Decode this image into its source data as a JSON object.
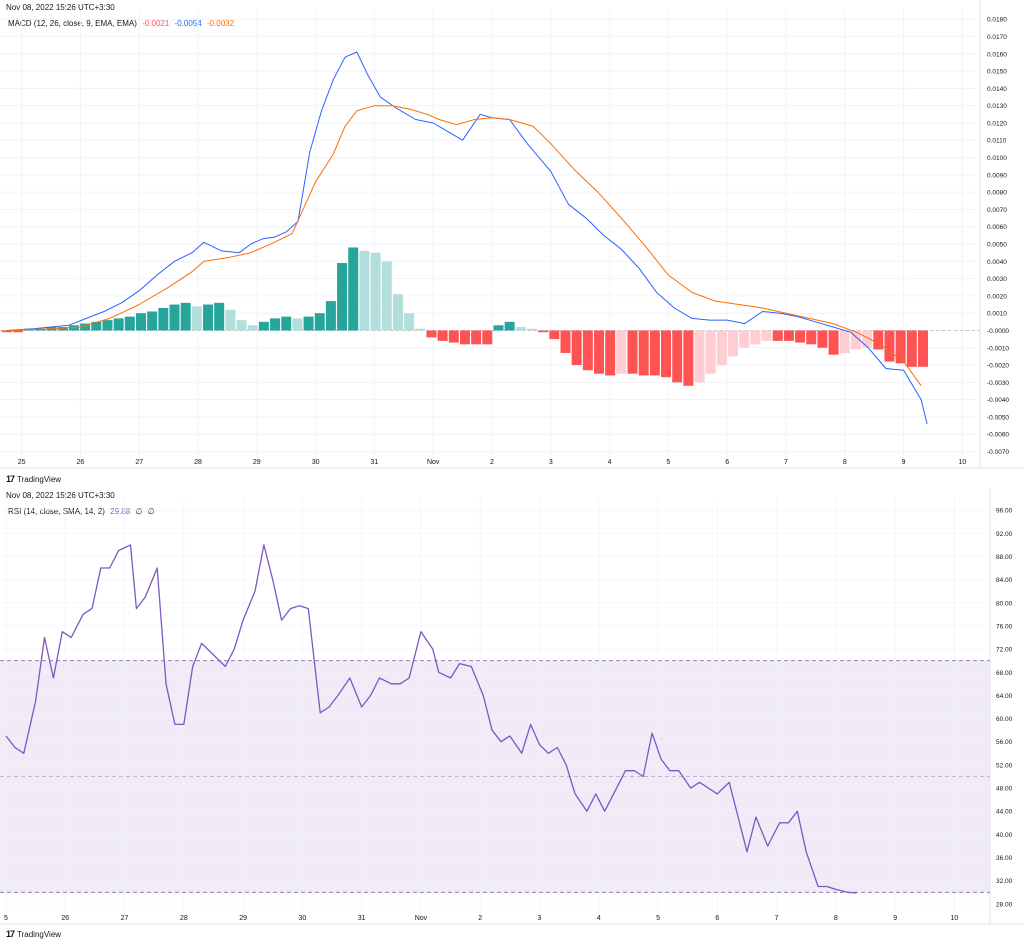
{
  "macd_panel": {
    "timestamp": "Nov 08, 2022 15:26 UTC+3:30",
    "legend": {
      "label": "MACD (12, 26, close, 9, EMA, EMA)",
      "value_histogram": "-0.0021",
      "value_macd": "-0.0054",
      "value_signal": "-0.0032"
    },
    "brand": "TradingView"
  },
  "rsi_panel": {
    "timestamp": "Nov 08, 2022 15:26 UTC+3:30",
    "legend": {
      "label": "RSI (14, close, SMA, 14, 2)",
      "value": "29.88",
      "extra1": "∅",
      "extra2": "∅"
    },
    "brand": "TradingView"
  },
  "colors": {
    "macd_line": "#2962ff",
    "signal_line": "#ff6d00",
    "hist_pos_strong": "#26a69a",
    "hist_pos_weak": "#b2dfdb",
    "hist_neg_strong": "#ff5252",
    "hist_neg_weak": "#ffcdd2",
    "rsi_line": "#7e57c2",
    "rsi_band": "#ede7f6",
    "value_red": "#ff5252",
    "value_blue": "#2962ff",
    "value_orange": "#ff6d00",
    "value_purple": "#7e57c2"
  },
  "chart_data": [
    {
      "type": "line",
      "x_ticks": [
        "25",
        "26",
        "27",
        "28",
        "29",
        "30",
        "31",
        "Nov",
        "2",
        "3",
        "4",
        "5",
        "6",
        "7",
        "8",
        "9",
        "10"
      ],
      "y_ticks": [
        "0.0180",
        "0.0170",
        "0.0160",
        "0.0150",
        "0.0140",
        "0.0130",
        "0.0120",
        "0.0110",
        "0.0100",
        "0.0090",
        "0.0080",
        "0.0070",
        "0.0060",
        "0.0050",
        "0.0040",
        "0.0030",
        "0.0020",
        "0.0010",
        "-0.0000",
        "-0.0010",
        "-0.0020",
        "-0.0030",
        "-0.0040",
        "-0.0050",
        "-0.0060",
        "-0.0070"
      ],
      "ylim": [
        -0.0072,
        0.0183
      ],
      "xlim": [
        24.7,
        41.3
      ],
      "zero_line": 0,
      "bar_width": 0.17,
      "histogram": {
        "x": [
          24.75,
          24.94,
          25.13,
          25.32,
          25.51,
          25.7,
          25.89,
          26.08,
          26.27,
          26.46,
          26.65,
          26.84,
          27.03,
          27.22,
          27.41,
          27.6,
          27.79,
          27.98,
          28.17,
          28.36,
          28.55,
          28.74,
          28.93,
          29.12,
          29.31,
          29.5,
          29.69,
          29.88,
          30.07,
          30.26,
          30.45,
          30.64,
          30.83,
          31.02,
          31.21,
          31.4,
          31.59,
          31.78,
          31.97,
          32.16,
          32.35,
          32.54,
          32.73,
          32.92,
          33.11,
          33.3,
          33.49,
          33.68,
          33.87,
          34.06,
          34.25,
          34.44,
          34.63,
          34.82,
          35.01,
          35.2,
          35.39,
          35.58,
          35.77,
          35.96,
          36.15,
          36.34,
          36.53,
          36.72,
          36.91,
          37.1,
          37.29,
          37.48,
          37.67,
          37.86,
          38.05,
          38.24,
          38.43,
          38.62,
          38.81,
          39.0,
          39.19,
          39.38,
          39.57,
          39.76,
          39.95,
          40.14,
          40.33
        ],
        "values": [
          -0.0001,
          -0.0001,
          0.0001,
          0.0001,
          0.0002,
          0.0002,
          0.0003,
          0.0004,
          0.0005,
          0.0006,
          0.0007,
          0.0008,
          0.001,
          0.0011,
          0.0013,
          0.0015,
          0.0016,
          0.0014,
          0.0015,
          0.0016,
          0.0012,
          0.0006,
          0.0003,
          0.0005,
          0.0007,
          0.0008,
          0.0007,
          0.0008,
          0.001,
          0.0017,
          0.0039,
          0.0048,
          0.0046,
          0.0045,
          0.004,
          0.0021,
          0.001,
          0.0001,
          -0.0004,
          -0.0006,
          -0.0007,
          -0.0008,
          -0.0008,
          -0.0008,
          0.0003,
          0.0005,
          0.0002,
          0.0001,
          -0.0001,
          -0.0005,
          -0.0013,
          -0.002,
          -0.0023,
          -0.0025,
          -0.0026,
          -0.0025,
          -0.0025,
          -0.0026,
          -0.0026,
          -0.0027,
          -0.003,
          -0.0032,
          -0.003,
          -0.0025,
          -0.002,
          -0.0015,
          -0.001,
          -0.0008,
          -0.0006,
          -0.0006,
          -0.0006,
          -0.0007,
          -0.0008,
          -0.001,
          -0.0014,
          -0.0013,
          -0.0011,
          -0.001,
          -0.0011,
          -0.0018,
          -0.0019,
          -0.0021,
          -0.0021
        ]
      },
      "series": [
        {
          "name": "MACD",
          "x": [
            24.75,
            25.2,
            25.5,
            25.8,
            26.1,
            26.4,
            26.7,
            27.0,
            27.3,
            27.6,
            27.9,
            28.1,
            28.4,
            28.7,
            28.9,
            29.1,
            29.3,
            29.5,
            29.7,
            29.9,
            30.1,
            30.3,
            30.5,
            30.7,
            30.9,
            31.1,
            31.4,
            31.7,
            32.0,
            32.2,
            32.5,
            32.8,
            33.0,
            33.3,
            33.6,
            34.0,
            34.3,
            34.6,
            34.9,
            35.2,
            35.5,
            35.8,
            36.1,
            36.4,
            36.7,
            37.0,
            37.3,
            37.6,
            37.9,
            38.2,
            38.5,
            38.8,
            39.1,
            39.4,
            39.7,
            40.0,
            40.3,
            40.4
          ],
          "values": [
            0.0,
            0.0001,
            0.0002,
            0.0003,
            0.0007,
            0.0011,
            0.0016,
            0.0023,
            0.0032,
            0.004,
            0.0045,
            0.0051,
            0.0046,
            0.0045,
            0.005,
            0.0053,
            0.0054,
            0.0057,
            0.0063,
            0.0103,
            0.0127,
            0.0145,
            0.0158,
            0.0161,
            0.0147,
            0.0135,
            0.0128,
            0.0122,
            0.012,
            0.0116,
            0.011,
            0.0125,
            0.0123,
            0.0122,
            0.0108,
            0.0092,
            0.0073,
            0.0065,
            0.0055,
            0.0047,
            0.0036,
            0.0022,
            0.0013,
            0.0007,
            0.0006,
            0.0006,
            0.0004,
            0.0011,
            0.001,
            0.0008,
            0.0005,
            0.0002,
            -0.0001,
            -0.001,
            -0.0022,
            -0.0023,
            -0.004,
            -0.0054
          ]
        },
        {
          "name": "Signal",
          "x": [
            24.75,
            25.5,
            26.0,
            26.5,
            27.0,
            27.5,
            27.9,
            28.1,
            28.5,
            28.9,
            29.3,
            29.6,
            29.8,
            30.0,
            30.3,
            30.5,
            30.7,
            31.0,
            31.3,
            31.6,
            31.9,
            32.1,
            32.4,
            32.7,
            33.0,
            33.3,
            33.7,
            34.0,
            34.4,
            34.8,
            35.2,
            35.6,
            36.0,
            36.4,
            36.8,
            37.2,
            37.6,
            38.0,
            38.4,
            38.8,
            39.2,
            39.6,
            40.0,
            40.3
          ],
          "values": [
            0.0,
            0.0001,
            0.0002,
            0.0007,
            0.0015,
            0.0025,
            0.0034,
            0.004,
            0.0042,
            0.0045,
            0.0051,
            0.0056,
            0.0071,
            0.0086,
            0.0102,
            0.0118,
            0.0127,
            0.013,
            0.013,
            0.0128,
            0.0125,
            0.0122,
            0.0119,
            0.0122,
            0.0123,
            0.0122,
            0.0118,
            0.0108,
            0.0093,
            0.008,
            0.0065,
            0.0049,
            0.0032,
            0.0022,
            0.0017,
            0.0015,
            0.0013,
            0.001,
            0.0007,
            0.0004,
            -0.0001,
            -0.0008,
            -0.0018,
            -0.0032
          ]
        }
      ]
    },
    {
      "type": "line",
      "x_ticks": [
        "5",
        "26",
        "27",
        "28",
        "29",
        "30",
        "31",
        "Nov",
        "2",
        "3",
        "4",
        "5",
        "6",
        "7",
        "8",
        "9",
        "10"
      ],
      "y_ticks": [
        "96.00",
        "92.00",
        "88.00",
        "84.00",
        "80.00",
        "76.00",
        "72.00",
        "68.00",
        "64.00",
        "60.00",
        "56.00",
        "52.00",
        "48.00",
        "44.00",
        "40.00",
        "36.00",
        "32.00",
        "28.00"
      ],
      "ylim": [
        26.6,
        97.4
      ],
      "xlim": [
        25.0,
        41.6
      ],
      "band": [
        30,
        70
      ],
      "midline": 50,
      "series": [
        {
          "name": "RSI",
          "x": [
            25.0,
            25.15,
            25.3,
            25.5,
            25.65,
            25.8,
            25.95,
            26.1,
            26.3,
            26.45,
            26.6,
            26.75,
            26.9,
            27.1,
            27.2,
            27.35,
            27.55,
            27.7,
            27.85,
            28.0,
            28.15,
            28.3,
            28.5,
            28.7,
            28.85,
            29.0,
            29.2,
            29.35,
            29.5,
            29.65,
            29.8,
            29.95,
            30.1,
            30.3,
            30.45,
            30.6,
            30.8,
            31.0,
            31.15,
            31.3,
            31.5,
            31.65,
            31.8,
            32.0,
            32.2,
            32.3,
            32.5,
            32.65,
            32.85,
            33.05,
            33.2,
            33.35,
            33.5,
            33.7,
            33.85,
            34.0,
            34.15,
            34.3,
            34.45,
            34.6,
            34.8,
            34.95,
            35.1,
            35.3,
            35.45,
            35.6,
            35.75,
            35.9,
            36.05,
            36.2,
            36.35,
            36.55,
            36.7,
            36.85,
            37.0,
            37.2,
            37.35,
            37.5,
            37.65,
            37.85,
            38.05,
            38.2,
            38.35,
            38.5,
            38.7,
            38.85,
            39.0,
            39.2,
            39.35
          ],
          "values": [
            57.0,
            55.0,
            54.0,
            63.0,
            74.0,
            67.0,
            75.0,
            74.0,
            78.0,
            79.0,
            86.0,
            86.0,
            89.0,
            90.0,
            79.0,
            81.0,
            86.0,
            66.0,
            59.0,
            59.0,
            69.0,
            73.0,
            71.0,
            69.0,
            72.0,
            77.0,
            82.0,
            90.0,
            84.0,
            77.0,
            79.0,
            79.5,
            79.0,
            61.0,
            62.0,
            64.0,
            67.0,
            62.0,
            64.0,
            67.0,
            66.0,
            66.0,
            67.0,
            75.0,
            72.0,
            68.0,
            67.0,
            69.5,
            69.0,
            64.0,
            58.0,
            56.0,
            57.0,
            54.0,
            59.0,
            55.5,
            54.0,
            55.0,
            52.0,
            47.0,
            44.0,
            47.0,
            44.0,
            48.0,
            51.0,
            51.0,
            50.0,
            57.5,
            53.0,
            51.0,
            51.0,
            48.0,
            49.0,
            48.0,
            47.0,
            49.0,
            43.0,
            37.0,
            43.0,
            38.0,
            42.0,
            42.0,
            44.0,
            37.0,
            31.0,
            31.0,
            30.5,
            30.0,
            29.88
          ]
        }
      ]
    }
  ]
}
